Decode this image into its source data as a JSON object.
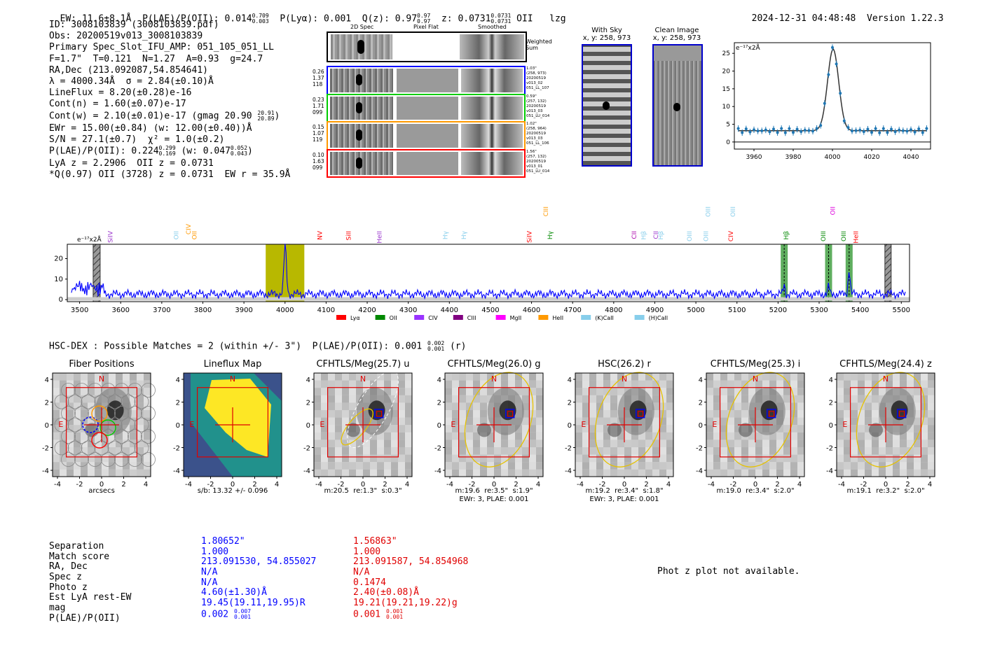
{
  "header": {
    "ew": "EW: 11.6±8.1Å",
    "plae_label": "P(LAE)/P(OII): 0.014",
    "plae_hi": "0.709",
    "plae_lo": "0.003",
    "plya": "P(Lyα): 0.001",
    "qz_label": "Q(z): 0.97",
    "qz_hi": "0.97",
    "qz_lo": "0.97",
    "z_label": "z: 0.0731",
    "z_hi": "0.0731",
    "z_lo": "0.0731",
    "line": "OII",
    "lzg": "lzg",
    "timestamp": "2024-12-31 04:48:48",
    "version": "Version 1.22.3"
  },
  "info": {
    "id": "ID: 3008103839 (3008103839.pdf)",
    "obs": "Obs: 20200519v013_3008103839",
    "primary": "Primary Spec_Slot_IFU_AMP: 051_105_051_LL",
    "fparams": "F=1.7\"  T=0.121  N=1.27  A=0.93  g=24.7",
    "radec": "RA,Dec (213.092087,54.854641)",
    "lambda": "λ = 4000.34Å  σ = 2.84(±0.10)Å",
    "lineflux": "LineFlux = 8.20(±0.28)e-16",
    "contn": "Cont(n) = 1.60(±0.07)e-17",
    "contw": "Cont(w) = 2.10(±0.01)e-17 (gmag 20.90",
    "contw_hi": "20.91",
    "contw_lo": "20.89",
    "contw_end": ")",
    "ewr": "EWr = 15.00(±0.84) (w: 12.00(±0.40))Å",
    "sn": "S/N = 27.1(±0.7)  χ² = 1.0(±0.2)",
    "plae": "P(LAE)/P(OII): 0.224",
    "plae_hi": "0.299",
    "plae_lo": "0.169",
    "plae_w": "(w: 0.047",
    "plae_w_hi": "0.052",
    "plae_w_lo": "0.043",
    "plae_w_end": ")",
    "lya_oii": "LyA z = 2.2906  OII z = 0.0731",
    "q_oii": "*Q(0.97) OII (3728) z = 0.0731  EW r = 35.9Å"
  },
  "cutouts": {
    "col_headers": [
      "2D Spec",
      "Pixel Flat",
      "Smoothed"
    ],
    "weighted_sum": "Weighted\nSum",
    "rows": [
      {
        "left": [
          "0.26",
          "1.37",
          "118"
        ],
        "right": [
          "1.03\"",
          "(258, 973)",
          "20200519",
          "v013_02",
          "051_LL_107"
        ],
        "color": "#0000ff"
      },
      {
        "left": [
          "0.23",
          "1.71",
          "099"
        ],
        "right": [
          "0.59\"",
          "(257, 132)",
          "20200519",
          "v013_03",
          "051_LU_014"
        ],
        "color": "#00cc00"
      },
      {
        "left": [
          "0.15",
          "1.07",
          "119"
        ],
        "right": [
          "1.02\"",
          "(258, 964)",
          "20200519",
          "v013_03",
          "051_LL_106"
        ],
        "color": "#ff9900"
      },
      {
        "left": [
          "0.10",
          "1.63",
          "099"
        ],
        "right": [
          "1.56\"",
          "(257, 132)",
          "20200519",
          "v013_01",
          "051_LU_014"
        ],
        "color": "#ff0000"
      }
    ]
  },
  "sky": {
    "with_sky_title": "With Sky",
    "with_sky_coords": "x, y: 258, 973",
    "clean_title": "Clean Image",
    "clean_coords": "x, y: 258, 973"
  },
  "line_fit": {
    "ylabel": "e⁻¹⁷x2Å",
    "yticks": [
      "0",
      "5",
      "10",
      "15",
      "20",
      "25"
    ],
    "xticks": [
      "3960",
      "3980",
      "4000",
      "4020",
      "4040"
    ]
  },
  "spectrum": {
    "ylabel": "e⁻¹⁷x2Å",
    "yticks": [
      "0",
      "10",
      "20"
    ],
    "xticks": [
      "3500",
      "3600",
      "3700",
      "3800",
      "3900",
      "4000",
      "4100",
      "4200",
      "4300",
      "4400",
      "4500",
      "4600",
      "4700",
      "4800",
      "4900",
      "5000",
      "5100",
      "5200",
      "5300",
      "5400",
      "5500"
    ],
    "line_labels": [
      {
        "text": "SiIV",
        "color": "#9933cc"
      },
      {
        "text": "OII",
        "color": "#87ceeb"
      },
      {
        "text": "CIV",
        "color": "#ff9900"
      },
      {
        "text": "OII",
        "color": "#ff9900"
      },
      {
        "text": "NV",
        "color": "#ff0000"
      },
      {
        "text": "SiII",
        "color": "#ff0000"
      },
      {
        "text": "HeII",
        "color": "#9933cc"
      },
      {
        "text": "Hγ",
        "color": "#87ceeb"
      },
      {
        "text": "Hγ",
        "color": "#87ceeb"
      },
      {
        "text": "SiIV",
        "color": "#ff0000"
      },
      {
        "text": "CIII",
        "color": "#ff9900"
      },
      {
        "text": "Hγ",
        "color": "#008800"
      },
      {
        "text": "CII",
        "color": "#aa00aa"
      },
      {
        "text": "Hβ",
        "color": "#87ceeb"
      },
      {
        "text": "CII",
        "color": "#9933cc"
      },
      {
        "text": "Hβ",
        "color": "#87ceeb"
      },
      {
        "text": "OIII",
        "color": "#87ceeb"
      },
      {
        "text": "OIII",
        "color": "#87ceeb"
      },
      {
        "text": "OIII",
        "color": "#87ceeb"
      },
      {
        "text": "CIV",
        "color": "#ff0000"
      },
      {
        "text": "OIII",
        "color": "#87ceeb"
      },
      {
        "text": "Hβ",
        "color": "#008800"
      },
      {
        "text": "OII",
        "color": "#dd00dd"
      },
      {
        "text": "OIII",
        "color": "#008800"
      },
      {
        "text": "OIII",
        "color": "#008800"
      },
      {
        "text": "HeII",
        "color": "#ff0000"
      }
    ],
    "legend": [
      {
        "label": "Lyα",
        "color": "#ff0000"
      },
      {
        "label": "OII",
        "color": "#008800"
      },
      {
        "label": "CIV",
        "color": "#9933ff"
      },
      {
        "label": "CIII",
        "color": "#800080"
      },
      {
        "label": "MgII",
        "color": "#ff00ff"
      },
      {
        "label": "HeII",
        "color": "#ff9900"
      },
      {
        "label": "(K)CaII",
        "color": "#87ceeb"
      },
      {
        "label": "(H)CaII",
        "color": "#87ceeb"
      }
    ]
  },
  "hsc": {
    "title": "HSC-DEX : Possible Matches = 2 (within +/- 3\")  P(LAE)/P(OII): 0.001",
    "hi": "0.002",
    "lo": "0.001",
    "band": "(r)"
  },
  "panels": [
    {
      "title": "Fiber Positions",
      "cap1": "arcsecs",
      "cap2": ""
    },
    {
      "title": "Lineflux Map",
      "cap1": "s/b: 13.32 +/- 0.096",
      "cap2": ""
    },
    {
      "title": "CFHTLS/Meg(25.7) u",
      "cap1": "m:20.5  re:1.3\"  s:0.3\"",
      "cap2": ""
    },
    {
      "title": "CFHTLS/Meg(26.0) g",
      "cap1": "m:19.6  re:3.5\"  s:1.9\"",
      "cap2": "EWr: 3, PLAE: 0.001"
    },
    {
      "title": "HSC(26.2) r",
      "cap1": "m:19.2  re:3.4\"  s:1.8\"",
      "cap2": "EWr: 3, PLAE: 0.001"
    },
    {
      "title": "CFHTLS/Meg(25.3) i",
      "cap1": "m:19.0  re:3.4\"  s:2.0\"",
      "cap2": ""
    },
    {
      "title": "CFHTLS/Meg(24.4) z",
      "cap1": "m:19.1  re:3.2\"  s:2.0\"",
      "cap2": ""
    }
  ],
  "panel_axes": {
    "yticks": [
      "4",
      "2",
      "0",
      "-2",
      "-4"
    ],
    "xticks": [
      "-4",
      "-2",
      "0",
      "2",
      "4"
    ],
    "north": "N",
    "east": "E"
  },
  "matches": {
    "labels": [
      "Separation",
      "Match score",
      "RA, Dec",
      "Spec z",
      "Photo z",
      "Est LyA rest-EW",
      "mag",
      "P(LAE)/P(OII)"
    ],
    "m1": [
      "1.80652\"",
      "1.000",
      "213.091530, 54.855027",
      "N/A",
      "N/A",
      "4.60(±1.30)Å",
      "19.45(19.11,19.95)R",
      "0.002"
    ],
    "m1_plae_hi": "0.007",
    "m1_plae_lo": "0.001",
    "m2": [
      "1.56863\"",
      "1.000",
      "213.091587, 54.854968",
      "N/A",
      "0.1474",
      "2.40(±0.08)Å",
      "19.21(19.21,19.22)g",
      "0.001"
    ],
    "m2_plae_hi": "0.001",
    "m2_plae_lo": "0.001",
    "photz_msg": "Phot z plot not available."
  }
}
